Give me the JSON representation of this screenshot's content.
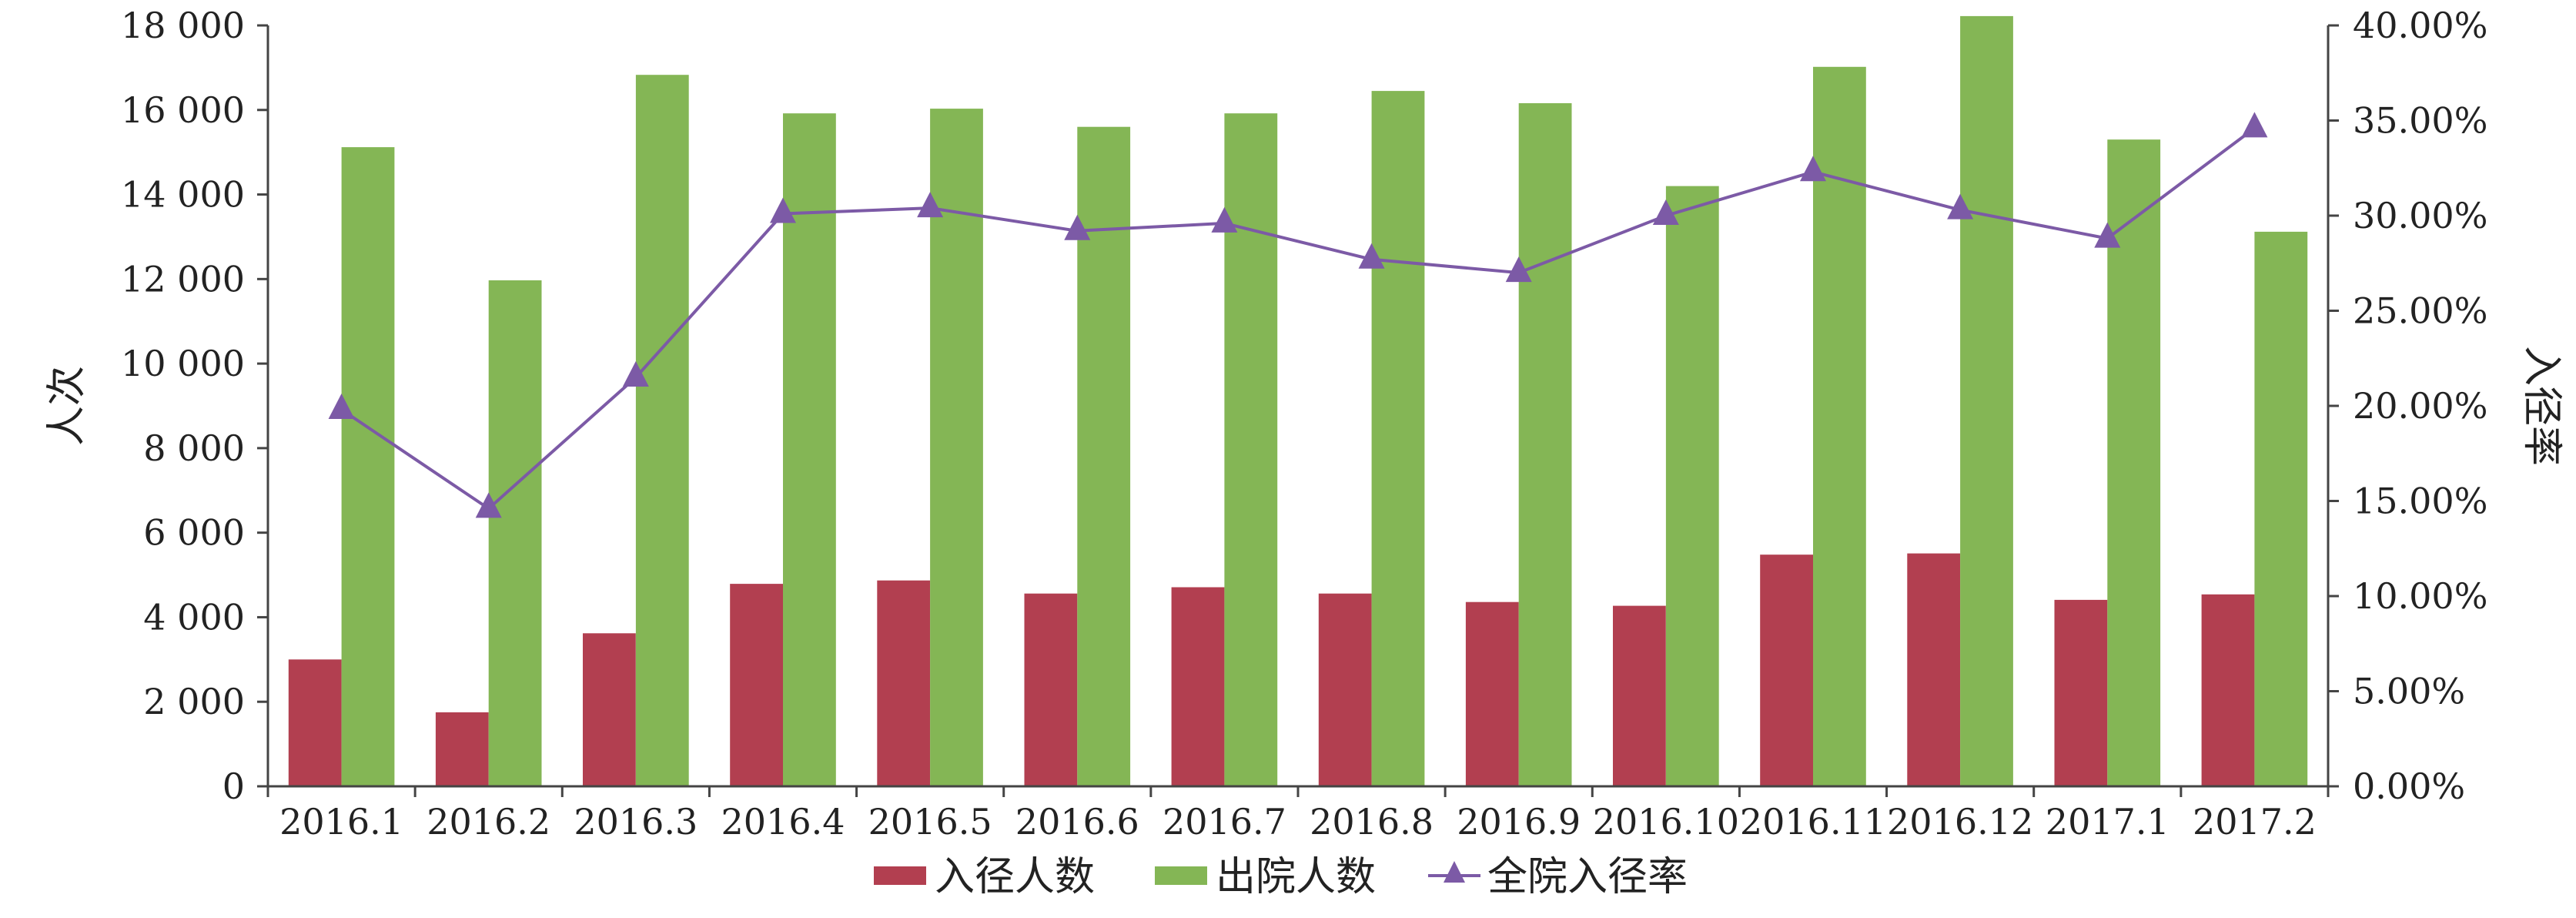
{
  "chart_data": {
    "type": "bar",
    "categories": [
      "2016.1",
      "2016.2",
      "2016.3",
      "2016.4",
      "2016.5",
      "2016.6",
      "2016.7",
      "2016.8",
      "2016.9",
      "2016.10",
      "2016.11",
      "2016.12",
      "2017.1",
      "2017.2"
    ],
    "series": [
      {
        "name": "入径人数",
        "type": "bar",
        "axis": "left",
        "color": "#b23f50",
        "values": [
          3000,
          1750,
          3620,
          4790,
          4870,
          4560,
          4710,
          4560,
          4360,
          4270,
          5480,
          5510,
          4410,
          4540
        ]
      },
      {
        "name": "出院人数",
        "type": "bar",
        "axis": "left",
        "color": "#84b655",
        "values": [
          15120,
          11970,
          16830,
          15920,
          16030,
          15600,
          15920,
          16450,
          16160,
          14200,
          17020,
          18220,
          15300,
          13120
        ]
      },
      {
        "name": "全院入径率",
        "type": "line",
        "marker": "triangle",
        "axis": "right",
        "color": "#7c5aa6",
        "values": [
          19.8,
          14.6,
          21.5,
          30.1,
          30.4,
          29.2,
          29.6,
          27.7,
          27.0,
          30.0,
          32.3,
          30.3,
          28.8,
          34.6
        ]
      }
    ],
    "ylabel": "人次",
    "ylabel_right": "入径率",
    "ylim": [
      0,
      18000
    ],
    "ylim_right": [
      0,
      40
    ],
    "yticks": [
      "0",
      "2 000",
      "4 000",
      "6 000",
      "8 000",
      "10 000",
      "12 000",
      "14 000",
      "16 000",
      "18 000"
    ],
    "yticks_right": [
      "0.00%",
      "5.00%",
      "10.00%",
      "15.00%",
      "20.00%",
      "25.00%",
      "30.00%",
      "35.00%",
      "40.00%"
    ],
    "grid": false,
    "legend_position": "bottom-center",
    "legend": [
      {
        "label": "入径人数",
        "type": "bar",
        "color": "#b23f50"
      },
      {
        "label": "出院人数",
        "type": "bar",
        "color": "#84b655"
      },
      {
        "label": "全院入径率",
        "type": "line",
        "color": "#7c5aa6"
      }
    ]
  }
}
